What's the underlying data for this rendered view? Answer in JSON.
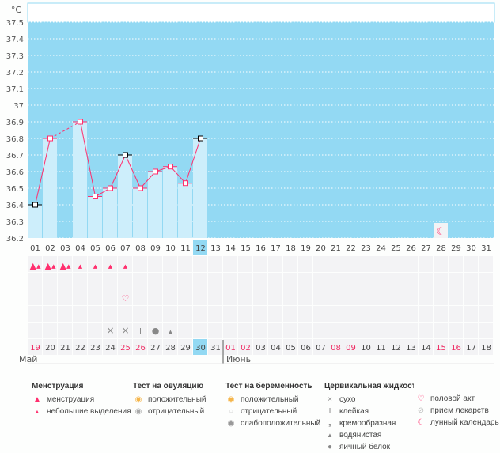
{
  "chart_data": {
    "type": "bar",
    "unit_label": "°C",
    "ylim": [
      36.2,
      37.5
    ],
    "yticks": [
      "36.2",
      "36.3",
      "36.4",
      "36.5",
      "36.6",
      "36.7",
      "36.8",
      "36.9",
      "37",
      "37.1",
      "37.2",
      "37.3",
      "37.4",
      "37.5"
    ],
    "cycle_days": [
      "01",
      "02",
      "03",
      "04",
      "05",
      "06",
      "07",
      "08",
      "09",
      "10",
      "11",
      "12",
      "13",
      "14",
      "15",
      "16",
      "17",
      "18",
      "19",
      "20",
      "21",
      "22",
      "23",
      "24",
      "25",
      "26",
      "27",
      "28",
      "29",
      "30",
      "31"
    ],
    "temperatures": [
      36.4,
      36.8,
      null,
      36.9,
      36.45,
      36.5,
      36.7,
      36.5,
      36.6,
      36.63,
      36.53,
      36.8
    ],
    "marker_black_days": [
      1,
      7,
      12
    ],
    "current_day": 12,
    "calendar_dates": [
      "19",
      "20",
      "21",
      "22",
      "23",
      "24",
      "25",
      "26",
      "27",
      "28",
      "29",
      "30",
      "31",
      "01",
      "02",
      "03",
      "04",
      "05",
      "06",
      "07",
      "08",
      "09",
      "10",
      "11",
      "12",
      "13",
      "14",
      "15",
      "16",
      "17",
      "18"
    ],
    "weekend_indices": [
      0,
      6,
      7,
      13,
      14,
      20,
      21,
      27,
      28
    ],
    "today_index": 11,
    "months": [
      "Май",
      "Июнь"
    ],
    "events": {
      "menstruation_heavy": [
        1,
        2,
        3
      ],
      "menstruation_light": [
        4,
        5,
        6,
        7
      ],
      "sex": [
        7
      ],
      "moon": [
        28
      ],
      "cervical": {
        "6": "dry",
        "7": "dry",
        "8": "sticky",
        "9": "eggwhite",
        "10": "watery"
      }
    }
  },
  "colors": {
    "sky": "#93d9f3",
    "bar": "#cdeefb",
    "line": "#ff2f6e",
    "weekend": "#ee2b63",
    "cell": "#f3f3f5"
  },
  "legend": {
    "menstruation": {
      "title": "Менструация",
      "items": [
        "менструация",
        "небольшие выделения"
      ]
    },
    "ovulation": {
      "title": "Тест на овуляцию",
      "items": [
        "положительный",
        "отрицательный"
      ]
    },
    "pregnancy": {
      "title": "Тест на беременность",
      "items": [
        "положительный",
        "отрицательный",
        "слабоположительный"
      ]
    },
    "cervical": {
      "title": "Цервикальная жидкость",
      "items": [
        "сухо",
        "клейкая",
        "кремообразная",
        "водянистая",
        "яичный белок"
      ]
    },
    "other": {
      "items": [
        "половой акт",
        "прием лекарств",
        "лунный календарь"
      ]
    }
  }
}
